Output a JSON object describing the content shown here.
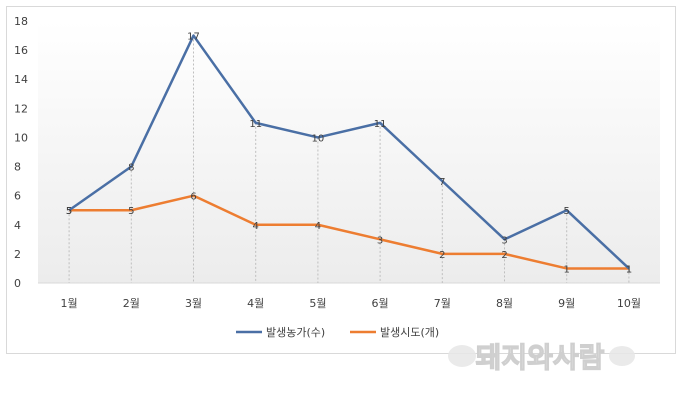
{
  "chart_data": {
    "type": "line",
    "categories": [
      "1월",
      "2월",
      "3월",
      "4월",
      "5월",
      "6월",
      "7월",
      "8월",
      "9월",
      "10월"
    ],
    "series": [
      {
        "name": "발생농가(수)",
        "values": [
          5,
          8,
          17,
          11,
          10,
          11,
          7,
          3,
          5,
          1
        ],
        "color": "#4a6fa5"
      },
      {
        "name": "발생시도(개)",
        "values": [
          5,
          5,
          6,
          4,
          4,
          3,
          2,
          2,
          1,
          1
        ],
        "color": "#ed7d31"
      }
    ],
    "ylim": [
      0,
      18
    ],
    "yticks": [
      0,
      2,
      4,
      6,
      8,
      10,
      12,
      14,
      16,
      18
    ],
    "legend_position": "bottom",
    "grid": "vertical dashed drop lines"
  },
  "watermark": {
    "text": "돼지와사람"
  }
}
